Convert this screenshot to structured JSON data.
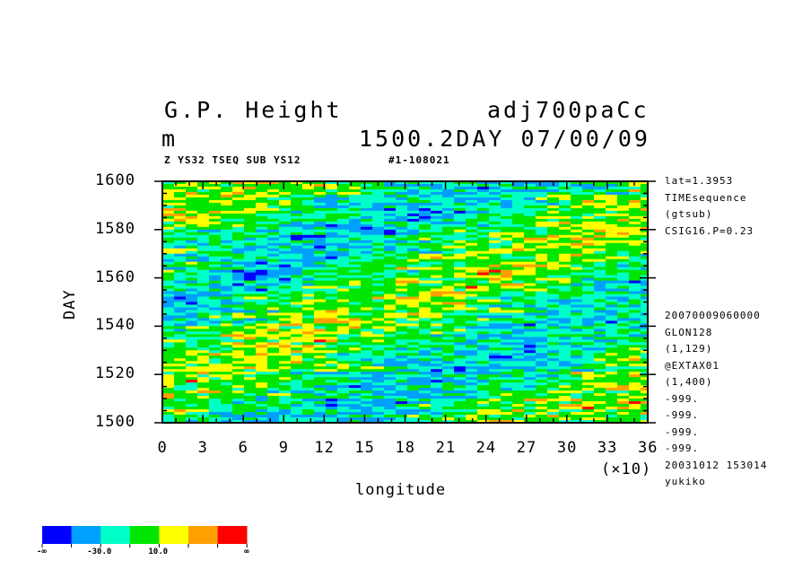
{
  "header": {
    "title_left": "G.P. Height",
    "title_right": "adj700paCc",
    "units": "m",
    "time_label": "1500.2DAY 07/00/09",
    "sub_left": "Z YS32 TSEQ SUB YS12",
    "sub_right": "#1-108021"
  },
  "info": {
    "top": [
      "lat=1.3953",
      "TIMEsequence",
      "(gtsub)",
      "CSIG16.P=0.23"
    ],
    "bottom": [
      "20070009060000",
      "GLON128",
      "(1,129)",
      "@EXTAX01",
      "(1,400)",
      "-999.",
      "-999.",
      "-999.",
      "-999.",
      "20031012 153014",
      "yukiko"
    ]
  },
  "chart_data": {
    "type": "heatmap",
    "xlabel": "longitude",
    "ylabel": "DAY",
    "x_multiplier": "(×10)",
    "xlim": [
      0,
      36
    ],
    "ylim": [
      1500,
      1600
    ],
    "x_ticks": [
      "0",
      "3",
      "6",
      "9",
      "12",
      "15",
      "18",
      "21",
      "24",
      "27",
      "30",
      "33",
      "36"
    ],
    "y_ticks": [
      "1500",
      "1520",
      "1540",
      "1560",
      "1580",
      "1600"
    ],
    "colorbar": {
      "colors": [
        "#0000ff",
        "#00a0ff",
        "#00ffc8",
        "#00e600",
        "#ffff00",
        "#ffa000",
        "#ff0000"
      ],
      "labels": [
        "-∞",
        "-30.0",
        "10.0",
        "∞"
      ]
    },
    "pattern": "eastward-propagating positive (yellow/red) bands tilted upward to the right; background mostly green and cyan with scattered blue streaks"
  }
}
